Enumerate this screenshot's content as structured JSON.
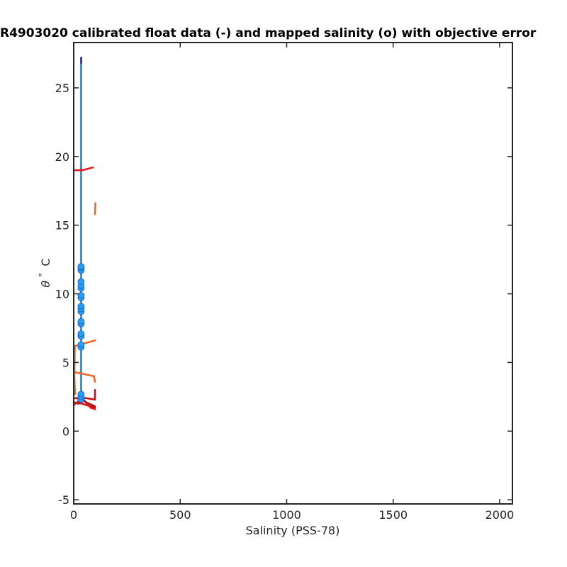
{
  "chart_data": {
    "type": "line",
    "title": "R4903020 calibrated float data (-) and mapped salinity (o) with objective error",
    "xlabel": "Salinity (PSS-78)",
    "ylabel_symbol": "θ",
    "ylabel_deg": "°",
    "ylabel_unit": "C",
    "xlim": [
      0,
      2060
    ],
    "ylim": [
      -5.3,
      28.3
    ],
    "xticks": [
      0,
      500,
      1000,
      1500,
      2000
    ],
    "xtick_labels": [
      "0",
      "500",
      "1000",
      "1500",
      "2000"
    ],
    "yticks": [
      -5,
      0,
      5,
      10,
      15,
      20,
      25
    ],
    "ytick_labels": [
      "-5",
      "0",
      "5",
      "10",
      "15",
      "20",
      "25"
    ],
    "grid": false,
    "series": [
      {
        "color": "#1a1acc",
        "points": [
          [
            35,
            2.6
          ],
          [
            35,
            27.2
          ]
        ]
      },
      {
        "color": "#2b9be6",
        "points": [
          [
            34,
            2.4
          ],
          [
            34,
            26.7
          ]
        ]
      },
      {
        "color": "#e8171e",
        "points": [
          [
            0,
            19.0
          ],
          [
            40,
            19.0
          ],
          [
            90,
            19.2
          ]
        ]
      },
      {
        "color": "#f26522",
        "points": [
          [
            100,
            15.8
          ],
          [
            102,
            16.6
          ]
        ]
      },
      {
        "color": "#f26522",
        "points": [
          [
            6,
            2.7
          ],
          [
            3,
            4.0
          ],
          [
            5,
            6.2
          ],
          [
            100,
            6.6
          ]
        ]
      },
      {
        "color": "#f26522",
        "points": [
          [
            3,
            4.3
          ],
          [
            95,
            4.0
          ],
          [
            100,
            3.6
          ]
        ]
      },
      {
        "color": "#c8101e",
        "points": [
          [
            0,
            2.4
          ],
          [
            60,
            2.4
          ],
          [
            100,
            2.3
          ],
          [
            100,
            3.0
          ]
        ]
      },
      {
        "color": "#d0101a",
        "points": [
          [
            0,
            2.1
          ],
          [
            40,
            2.0
          ],
          [
            100,
            1.7
          ]
        ]
      },
      {
        "color": "#e01818",
        "points": [
          [
            0,
            1.9
          ],
          [
            40,
            2.4
          ],
          [
            80,
            1.7
          ],
          [
            100,
            1.6
          ]
        ]
      },
      {
        "color": "#b01010",
        "points": [
          [
            20,
            2.0
          ],
          [
            45,
            2.2
          ],
          [
            100,
            1.8
          ]
        ]
      }
    ],
    "mapped_points": {
      "x": 34.5,
      "y": [
        2.3,
        2.5,
        2.7,
        6.1,
        6.3,
        6.9,
        7.1,
        7.8,
        8.0,
        8.7,
        8.9,
        9.1,
        9.7,
        9.9,
        10.4,
        10.6,
        10.9,
        11.7,
        11.9,
        12.0
      ],
      "fill": "#2a9df0",
      "edge": "#1f5fbf"
    }
  }
}
